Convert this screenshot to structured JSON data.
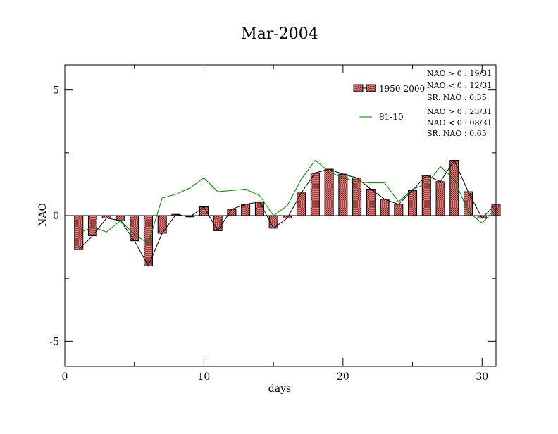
{
  "chart_data": {
    "type": "bar",
    "title": "Mar-2004",
    "xlabel": "days",
    "ylabel": "NAO",
    "xlim": [
      0,
      31
    ],
    "ylim": [
      -6,
      6
    ],
    "x_ticks": [
      0,
      10,
      20,
      30
    ],
    "y_ticks": [
      -5,
      0,
      5
    ],
    "x_tick_labels": [
      "0",
      "10",
      "20",
      "30"
    ],
    "y_tick_labels": [
      "-5",
      "0",
      "5"
    ],
    "x": [
      1,
      2,
      3,
      4,
      5,
      6,
      7,
      8,
      9,
      10,
      11,
      12,
      13,
      14,
      15,
      16,
      17,
      18,
      19,
      20,
      21,
      22,
      23,
      24,
      25,
      26,
      27,
      28,
      29,
      30,
      31
    ],
    "series": [
      {
        "name": "1950-2000",
        "type": "bar",
        "color": "#ff7f7f",
        "values": [
          -1.35,
          -0.8,
          -0.1,
          -0.2,
          -1.0,
          -2.0,
          -0.7,
          0.05,
          -0.05,
          0.35,
          -0.6,
          0.25,
          0.45,
          0.55,
          -0.5,
          -0.1,
          0.9,
          1.7,
          1.85,
          1.65,
          1.5,
          1.05,
          0.65,
          0.45,
          1.0,
          1.6,
          1.35,
          2.2,
          0.95,
          -0.1,
          0.45
        ]
      },
      {
        "name": "81-10",
        "type": "line",
        "color": "#008000",
        "values": [
          -0.7,
          -0.45,
          -0.65,
          -0.2,
          -0.75,
          -1.1,
          0.7,
          0.85,
          1.1,
          1.5,
          0.95,
          1.0,
          1.05,
          0.8,
          0.0,
          0.4,
          1.45,
          2.2,
          1.75,
          1.5,
          1.35,
          1.3,
          1.3,
          0.55,
          1.05,
          1.25,
          1.95,
          1.45,
          0.15,
          -0.3,
          0.3
        ]
      }
    ],
    "legend_position": "top-right",
    "annotations": {
      "set1": [
        "NAO > 0 : 19/31",
        "NAO < 0 : 12/31",
        "SR. NAO :  0.35"
      ],
      "set2": [
        "NAO > 0 : 23/31",
        "NAO < 0 : 08/31",
        "SR. NAO :  0.65"
      ]
    }
  }
}
